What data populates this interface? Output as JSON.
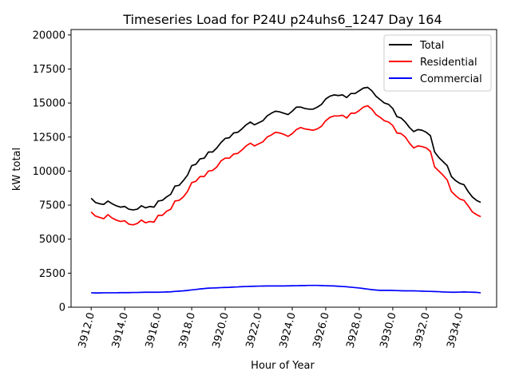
{
  "chart_data": {
    "type": "line",
    "title": "Timeseries Load for P24U p24uhs6_1247  Day 164",
    "xlabel": "Hour of Year",
    "ylabel": "kW total",
    "xlim": [
      3910.8,
      3936.2
    ],
    "ylim": [
      0,
      20400
    ],
    "xticks": [
      3912,
      3914,
      3916,
      3918,
      3920,
      3922,
      3924,
      3926,
      3928,
      3930,
      3932,
      3934
    ],
    "xtick_labels": [
      "3912.0",
      "3914.0",
      "3916.0",
      "3918.0",
      "3920.0",
      "3922.0",
      "3924.0",
      "3926.0",
      "3928.0",
      "3930.0",
      "3932.0",
      "3934.0"
    ],
    "yticks": [
      0,
      2500,
      5000,
      7500,
      10000,
      12500,
      15000,
      17500,
      20000
    ],
    "ytick_labels": [
      "0",
      "2500",
      "5000",
      "7500",
      "10000",
      "12500",
      "15000",
      "17500",
      "20000"
    ],
    "legend_position": "top-right",
    "x_start": 3912.0,
    "x_step": 0.25,
    "series": [
      {
        "name": "Total",
        "color": "#000000",
        "values": [
          8000,
          7700,
          7600,
          7550,
          7800,
          7600,
          7450,
          7350,
          7400,
          7200,
          7150,
          7200,
          7450,
          7300,
          7400,
          7350,
          7800,
          7850,
          8100,
          8300,
          8900,
          8950,
          9300,
          9700,
          10400,
          10500,
          10900,
          10950,
          11400,
          11400,
          11700,
          12100,
          12400,
          12450,
          12800,
          12850,
          13100,
          13400,
          13600,
          13400,
          13550,
          13700,
          14050,
          14250,
          14400,
          14350,
          14250,
          14150,
          14400,
          14700,
          14700,
          14600,
          14550,
          14550,
          14700,
          14900,
          15300,
          15500,
          15600,
          15550,
          15600,
          15400,
          15700,
          15700,
          15900,
          16100,
          16150,
          15900,
          15500,
          15250,
          15000,
          14900,
          14600,
          14000,
          13900,
          13600,
          13200,
          12900,
          13050,
          13000,
          12850,
          12600,
          11400,
          11000,
          10700,
          10400,
          9600,
          9300,
          9100,
          9000,
          8500,
          8100,
          7850,
          7700
        ]
      },
      {
        "name": "Residential",
        "color": "#ff0000",
        "values": [
          7000,
          6700,
          6600,
          6500,
          6800,
          6550,
          6400,
          6300,
          6350,
          6100,
          6050,
          6150,
          6400,
          6200,
          6300,
          6250,
          6750,
          6750,
          7050,
          7200,
          7800,
          7850,
          8100,
          8500,
          9150,
          9250,
          9600,
          9600,
          10000,
          10050,
          10300,
          10750,
          10950,
          10950,
          11250,
          11300,
          11550,
          11850,
          12050,
          11850,
          12000,
          12150,
          12500,
          12650,
          12850,
          12800,
          12700,
          12550,
          12750,
          13050,
          13200,
          13100,
          13050,
          13000,
          13100,
          13300,
          13700,
          13950,
          14050,
          14050,
          14100,
          13900,
          14250,
          14250,
          14450,
          14700,
          14800,
          14550,
          14150,
          13950,
          13700,
          13600,
          13350,
          12800,
          12750,
          12500,
          12050,
          11700,
          11850,
          11800,
          11700,
          11450,
          10300,
          10000,
          9700,
          9350,
          8500,
          8200,
          7950,
          7850,
          7450,
          7000,
          6800,
          6650
        ]
      },
      {
        "name": "Commercial",
        "color": "#0000ff",
        "values": [
          1060,
          1050,
          1050,
          1060,
          1060,
          1060,
          1060,
          1070,
          1070,
          1070,
          1080,
          1080,
          1090,
          1100,
          1100,
          1100,
          1100,
          1110,
          1120,
          1130,
          1160,
          1180,
          1200,
          1230,
          1270,
          1300,
          1340,
          1370,
          1400,
          1410,
          1420,
          1440,
          1450,
          1460,
          1480,
          1490,
          1510,
          1520,
          1530,
          1540,
          1550,
          1555,
          1560,
          1560,
          1560,
          1560,
          1560,
          1570,
          1575,
          1580,
          1590,
          1590,
          1600,
          1600,
          1600,
          1590,
          1580,
          1570,
          1560,
          1540,
          1520,
          1500,
          1470,
          1440,
          1410,
          1370,
          1330,
          1290,
          1260,
          1240,
          1240,
          1240,
          1230,
          1220,
          1210,
          1200,
          1200,
          1200,
          1190,
          1180,
          1170,
          1160,
          1150,
          1140,
          1120,
          1110,
          1100,
          1100,
          1110,
          1120,
          1110,
          1100,
          1090,
          1060
        ]
      }
    ]
  }
}
